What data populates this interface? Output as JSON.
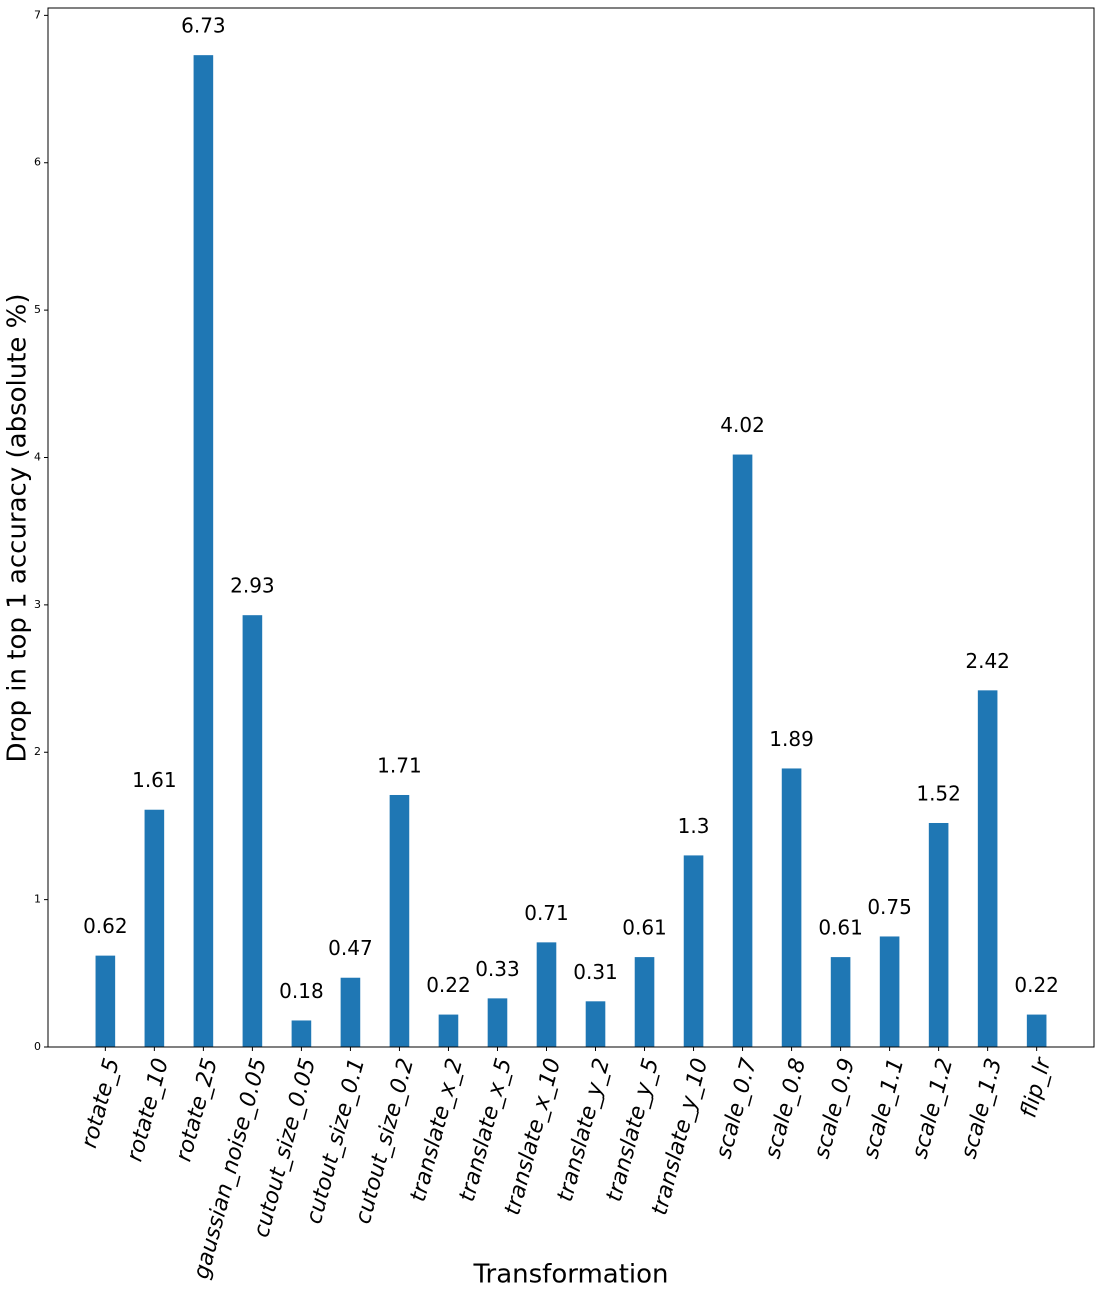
{
  "chart_data": {
    "type": "bar",
    "x_label": "Transformation",
    "y_label": "Drop in top 1 accuracy (absolute %)",
    "categories": [
      "rotate_5",
      "rotate_10",
      "rotate_25",
      "gaussian_noise_0.05",
      "cutout_size_0.05",
      "cutout_size_0.1",
      "cutout_size_0.2",
      "translate_x_2",
      "translate_x_5",
      "translate_x_10",
      "translate_y_2",
      "translate_y_5",
      "translate_y_10",
      "scale_0.7",
      "scale_0.8",
      "scale_0.9",
      "scale_1.1",
      "scale_1.2",
      "scale_1.3",
      "flip_lr"
    ],
    "values": [
      0.62,
      1.61,
      6.73,
      2.93,
      0.18,
      0.47,
      1.71,
      0.22,
      0.33,
      0.71,
      0.31,
      0.61,
      1.3,
      4.02,
      1.89,
      0.61,
      0.75,
      1.52,
      2.42,
      0.22
    ],
    "color": "#1f77b4",
    "ylim": [
      0,
      7.05
    ],
    "yticks": [
      0,
      1,
      2,
      3,
      4,
      5,
      6,
      7
    ],
    "grid": false
  }
}
